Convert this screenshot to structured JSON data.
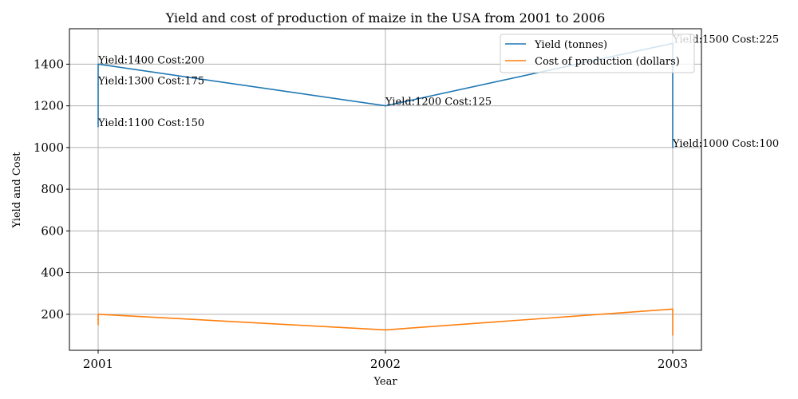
{
  "chart_data": {
    "type": "line",
    "title": "Yield and cost of production of maize in the USA from 2001 to 2006",
    "xlabel": "Year",
    "ylabel": "Yield and Cost",
    "xlim": [
      2000.9,
      2003.1
    ],
    "ylim": [
      27,
      1570
    ],
    "x_ticks": [
      {
        "value": 2001,
        "label": "2001"
      },
      {
        "value": 2002,
        "label": "2002"
      },
      {
        "value": 2003,
        "label": "2003"
      }
    ],
    "y_ticks": [
      {
        "value": 200,
        "label": "200"
      },
      {
        "value": 400,
        "label": "400"
      },
      {
        "value": 600,
        "label": "600"
      },
      {
        "value": 800,
        "label": "800"
      },
      {
        "value": 1000,
        "label": "1000"
      },
      {
        "value": 1200,
        "label": "1200"
      },
      {
        "value": 1400,
        "label": "1400"
      }
    ],
    "grid": true,
    "legend_position": "top-right",
    "series": [
      {
        "name": "Yield (tonnes)",
        "color": "#1f77b4",
        "x": [
          2001,
          2001,
          2001,
          2002,
          2003,
          2003
        ],
        "values": [
          1100,
          1300,
          1400,
          1200,
          1500,
          1000
        ]
      },
      {
        "name": "Cost of production (dollars)",
        "color": "#ff7f0e",
        "x": [
          2001,
          2001,
          2001,
          2002,
          2003,
          2003
        ],
        "values": [
          150,
          175,
          200,
          125,
          225,
          100
        ]
      }
    ],
    "annotations": [
      {
        "x": 2001,
        "y": 1400,
        "text": "Yield:1400 Cost:200"
      },
      {
        "x": 2001,
        "y": 1300,
        "text": "Yield:1300 Cost:175"
      },
      {
        "x": 2001,
        "y": 1100,
        "text": "Yield:1100 Cost:150"
      },
      {
        "x": 2002,
        "y": 1200,
        "text": "Yield:1200 Cost:125"
      },
      {
        "x": 2003,
        "y": 1500,
        "text": "Yield:1500 Cost:225"
      },
      {
        "x": 2003,
        "y": 1000,
        "text": "Yield:1000 Cost:100"
      }
    ]
  }
}
